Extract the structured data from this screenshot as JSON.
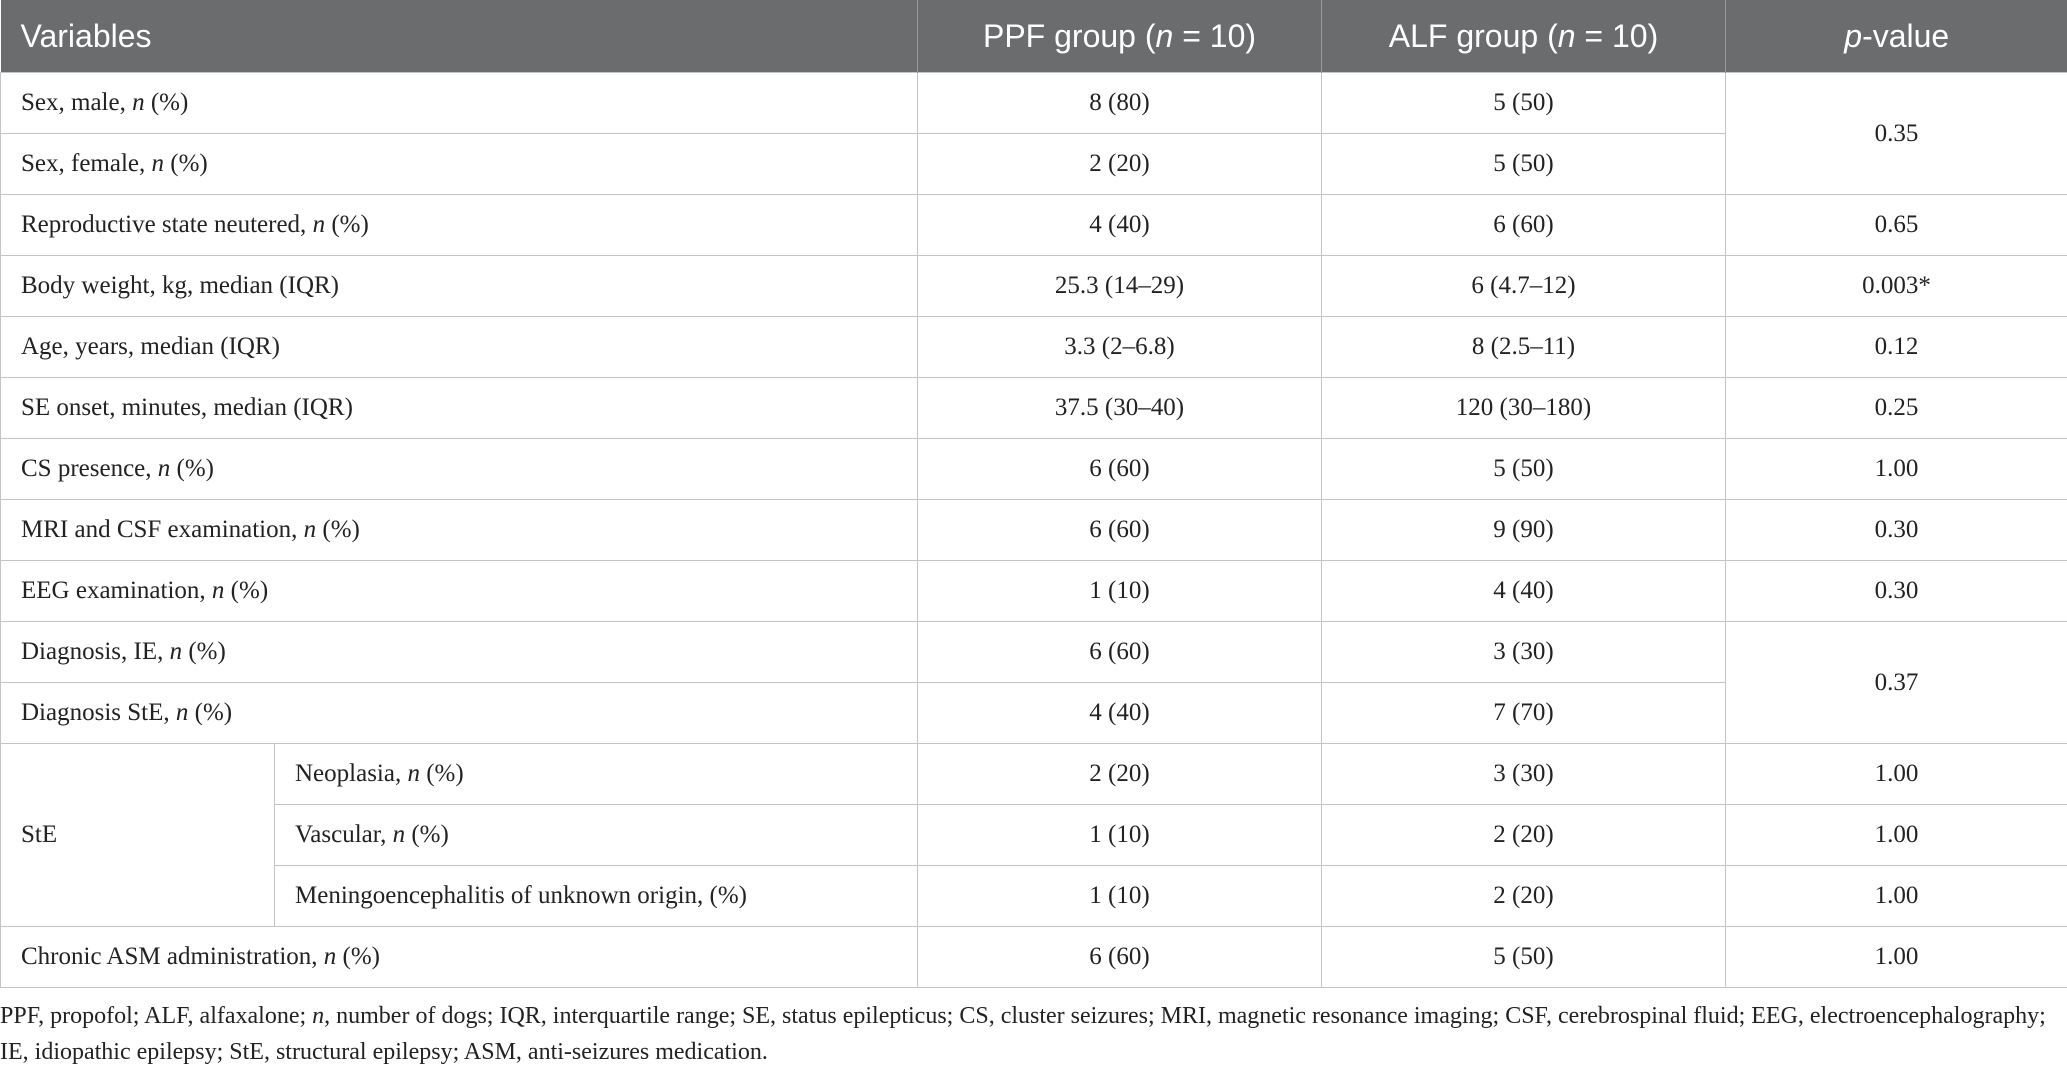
{
  "table": {
    "header": [
      [
        {
          "text": "Variables"
        }
      ],
      [
        {
          "text": "PPF group ("
        },
        {
          "text": "n",
          "italic": true
        },
        {
          "text": " = 10)"
        }
      ],
      [
        {
          "text": "ALF group ("
        },
        {
          "text": "n",
          "italic": true
        },
        {
          "text": " = 10)"
        }
      ],
      [
        {
          "text": "p",
          "italic": true
        },
        {
          "text": "-value"
        }
      ]
    ],
    "rows": [
      {
        "label": [
          {
            "text": "Sex, male, "
          },
          {
            "text": "n",
            "italic": true
          },
          {
            "text": " (%)"
          }
        ],
        "ppf": "8 (80)",
        "alf": "5 (50)",
        "p": "0.35"
      },
      {
        "label": [
          {
            "text": "Sex, female, "
          },
          {
            "text": "n",
            "italic": true
          },
          {
            "text": " (%)"
          }
        ],
        "ppf": "2 (20)",
        "alf": "5 (50)"
      },
      {
        "label": [
          {
            "text": "Reproductive state neutered, "
          },
          {
            "text": "n",
            "italic": true
          },
          {
            "text": " (%)"
          }
        ],
        "ppf": "4 (40)",
        "alf": "6 (60)",
        "p": "0.65"
      },
      {
        "label": [
          {
            "text": "Body weight, kg, median (IQR)"
          }
        ],
        "ppf": "25.3 (14–29)",
        "alf": "6 (4.7–12)",
        "p": "0.003*"
      },
      {
        "label": [
          {
            "text": "Age, years, median (IQR)"
          }
        ],
        "ppf": "3.3 (2–6.8)",
        "alf": "8 (2.5–11)",
        "p": "0.12"
      },
      {
        "label": [
          {
            "text": "SE onset, minutes, median (IQR)"
          }
        ],
        "ppf": "37.5 (30–40)",
        "alf": "120 (30–180)",
        "p": "0.25"
      },
      {
        "label": [
          {
            "text": "CS presence, "
          },
          {
            "text": "n",
            "italic": true
          },
          {
            "text": " (%)"
          }
        ],
        "ppf": "6 (60)",
        "alf": "5 (50)",
        "p": "1.00"
      },
      {
        "label": [
          {
            "text": "MRI and CSF examination, "
          },
          {
            "text": "n",
            "italic": true
          },
          {
            "text": " (%)"
          }
        ],
        "ppf": "6 (60)",
        "alf": "9 (90)",
        "p": "0.30"
      },
      {
        "label": [
          {
            "text": "EEG examination, "
          },
          {
            "text": "n",
            "italic": true
          },
          {
            "text": " (%)"
          }
        ],
        "ppf": "1 (10)",
        "alf": "4 (40)",
        "p": "0.30"
      },
      {
        "label": [
          {
            "text": "Diagnosis, IE, "
          },
          {
            "text": "n",
            "italic": true
          },
          {
            "text": " (%)"
          }
        ],
        "ppf": "6 (60)",
        "alf": "3 (30)",
        "p": "0.37"
      },
      {
        "label": [
          {
            "text": "Diagnosis StE, "
          },
          {
            "text": "n",
            "italic": true
          },
          {
            "text": " (%)"
          }
        ],
        "ppf": "4 (40)",
        "alf": "7 (70)"
      },
      {
        "group": "StE",
        "items": [
          {
            "label": [
              {
                "text": "Neoplasia, "
              },
              {
                "text": "n",
                "italic": true
              },
              {
                "text": " (%)"
              }
            ],
            "ppf": "2 (20)",
            "alf": "3 (30)",
            "p": "1.00"
          },
          {
            "label": [
              {
                "text": "Vascular, "
              },
              {
                "text": "n",
                "italic": true
              },
              {
                "text": " (%)"
              }
            ],
            "ppf": "1 (10)",
            "alf": "2 (20)",
            "p": "1.00"
          },
          {
            "label": [
              {
                "text": "Meningoencephalitis of unknown origin, (%)"
              }
            ],
            "ppf": "1 (10)",
            "alf": "2 (20)",
            "p": "1.00"
          }
        ]
      },
      {
        "label": [
          {
            "text": "Chronic ASM administration, "
          },
          {
            "text": "n",
            "italic": true
          },
          {
            "text": " (%)"
          }
        ],
        "ppf": "6 (60)",
        "alf": "5 (50)",
        "p": "1.00"
      }
    ]
  },
  "footnote": [
    {
      "text": "PPF, propofol; ALF, alfaxalone; "
    },
    {
      "text": "n",
      "italic": true
    },
    {
      "text": ", number of dogs; IQR, interquartile range; SE, status epilepticus; CS, cluster seizures; MRI, magnetic resonance imaging; CSF, cerebrospinal fluid; EEG, electroencephalography; IE, idiopathic epilepsy; StE, structural epilepsy; ASM, anti-seizures medication."
    }
  ]
}
